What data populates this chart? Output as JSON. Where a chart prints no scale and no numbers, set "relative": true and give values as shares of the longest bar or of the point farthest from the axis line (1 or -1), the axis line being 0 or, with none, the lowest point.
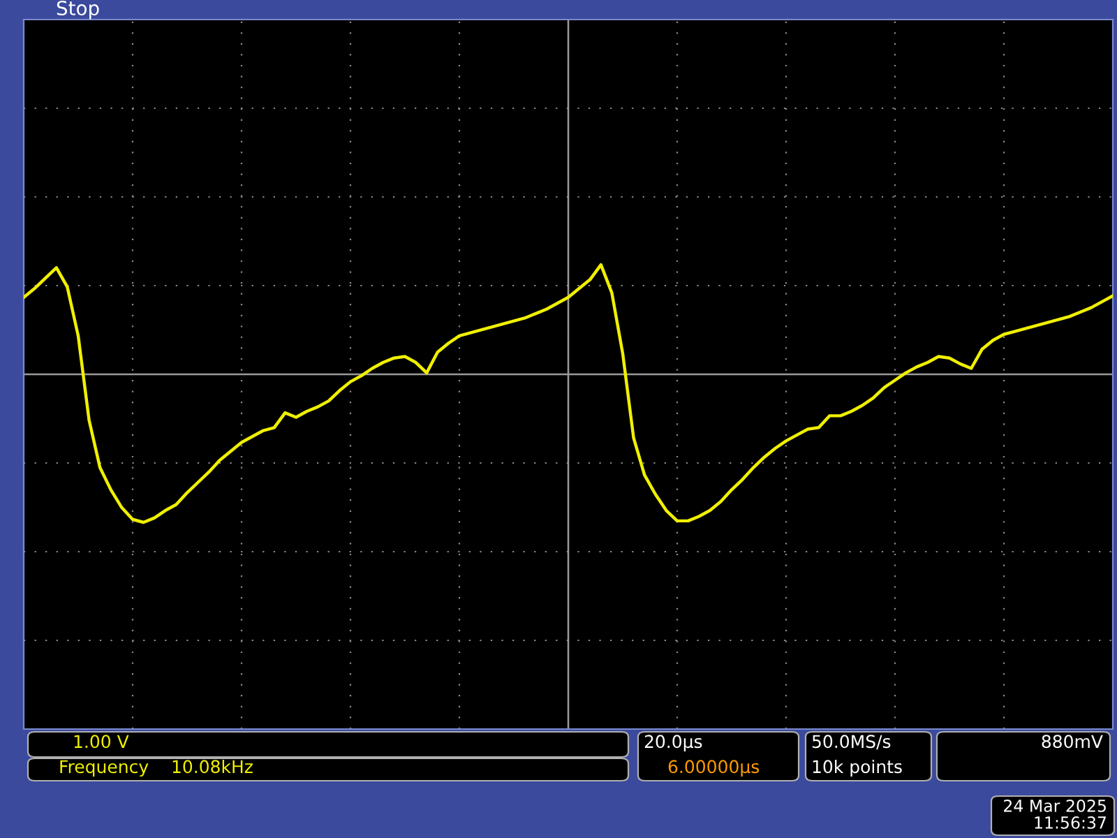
{
  "chart_data": {
    "type": "line",
    "relative": true,
    "grid": true,
    "legend": false,
    "line_style": "solid",
    "marker": "none",
    "categories": [
      null,
      null,
      null,
      null,
      null,
      null,
      null,
      null,
      null,
      null,
      null,
      null,
      null,
      null,
      null,
      null,
      null,
      null,
      null,
      null,
      null,
      null,
      null,
      null,
      null,
      null,
      null,
      null,
      null,
      null,
      null,
      null,
      null,
      null,
      null,
      null,
      null,
      null,
      null,
      null,
      null,
      null,
      null,
      null,
      null,
      null,
      null,
      null,
      null,
      null,
      null,
      null,
      null,
      null,
      null,
      null,
      null,
      null,
      null,
      null,
      null,
      null,
      null,
      null,
      null,
      null,
      null,
      null,
      null,
      null,
      null,
      null,
      null,
      null,
      null,
      null,
      null,
      null,
      null,
      null,
      null,
      null,
      null,
      null,
      null,
      null,
      null,
      null,
      null,
      null,
      null,
      null,
      null,
      null,
      null,
      null,
      null,
      null,
      null,
      null,
      null
    ],
    "series": [
      {
        "color": "#f0f000",
        "values": [
          0.52,
          0.58,
          0.65,
          0.72,
          0.59,
          0.26,
          -0.31,
          -0.63,
          -0.78,
          -0.9,
          -0.98,
          -1.0,
          -0.97,
          -0.92,
          -0.88,
          -0.8,
          -0.73,
          -0.66,
          -0.58,
          -0.52,
          -0.46,
          -0.42,
          -0.38,
          -0.36,
          -0.26,
          -0.29,
          -0.25,
          -0.22,
          -0.18,
          -0.11,
          -0.05,
          -0.01,
          0.04,
          0.08,
          0.11,
          0.12,
          0.08,
          0.01,
          0.15,
          0.21,
          0.26,
          0.28,
          0.3,
          0.32,
          0.34,
          0.36,
          0.38,
          0.41,
          0.44,
          0.48,
          0.52,
          0.58,
          0.64,
          0.74,
          0.55,
          0.14,
          -0.43,
          -0.68,
          -0.81,
          -0.92,
          -0.99,
          -0.99,
          -0.96,
          -0.92,
          -0.86,
          -0.78,
          -0.71,
          -0.63,
          -0.56,
          -0.5,
          -0.45,
          -0.41,
          -0.37,
          -0.36,
          -0.28,
          -0.28,
          -0.25,
          -0.21,
          -0.16,
          -0.09,
          -0.04,
          0.01,
          0.05,
          0.08,
          0.12,
          0.11,
          0.07,
          0.04,
          0.17,
          0.23,
          0.27,
          0.29,
          0.31,
          0.33,
          0.35,
          0.37,
          0.39,
          0.42,
          0.45,
          0.49,
          0.53
        ]
      }
    ],
    "annotations": [
      "Stop",
      "1.00 V",
      "Frequency    10.08kHz",
      "20.0µs",
      "6.00000µs",
      "50.0MS/s",
      "10k points",
      "880mV",
      "24 Mar 2025",
      "11:56:37"
    ]
  }
}
